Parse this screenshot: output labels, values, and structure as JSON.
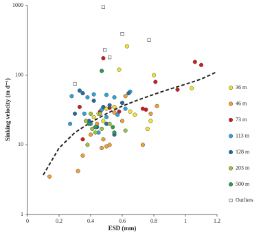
{
  "chart_data": {
    "type": "scatter",
    "x_label": "ESD (mm)",
    "y_label": "Sinking velocity (m d⁻¹)",
    "xlim": [
      0,
      1.2
    ],
    "xticks": [
      0,
      0.2,
      0.4,
      0.6,
      0.8,
      1,
      1.2
    ],
    "ylim": [
      1,
      1000
    ],
    "yticks": [
      1,
      10,
      100,
      1000
    ],
    "yscale": "log",
    "legend": "right",
    "series": [
      {
        "name": "36 m",
        "color": "#f1e62a",
        "marker": "circle",
        "x": [
          0.63,
          0.58,
          0.8,
          1.04,
          0.78,
          0.76,
          0.65,
          0.5,
          0.45,
          0.42,
          0.55,
          0.6,
          0.48,
          0.68
        ],
        "values": [
          260,
          120,
          100,
          65,
          22,
          17,
          30,
          33,
          28,
          25,
          35,
          40,
          22,
          27
        ]
      },
      {
        "name": "46 m",
        "color": "#f0a132",
        "marker": "circle",
        "x": [
          0.14,
          0.32,
          0.35,
          0.47,
          0.5,
          0.52,
          0.73,
          0.78,
          0.82,
          0.62,
          0.55,
          0.44,
          0.6,
          0.4,
          0.48
        ],
        "values": [
          3.5,
          4.2,
          7,
          9,
          9.5,
          10,
          10,
          28,
          36,
          50,
          29,
          20,
          22,
          14,
          12
        ]
      },
      {
        "name": "73 m",
        "color": "#d01c1c",
        "marker": "circle",
        "x": [
          0.48,
          1.06,
          1.1,
          0.95,
          0.81,
          0.73,
          0.75,
          0.33,
          0.35,
          0.52,
          0.58,
          0.46
        ],
        "values": [
          175,
          155,
          140,
          62,
          80,
          33,
          32,
          35,
          12,
          34,
          30,
          30
        ]
      },
      {
        "name": "113 m",
        "color": "#2ba3dc",
        "marker": "circle",
        "x": [
          0.27,
          0.28,
          0.38,
          0.42,
          0.47,
          0.5,
          0.55,
          0.62,
          0.65,
          0.5,
          0.45,
          0.4,
          0.36,
          0.57
        ],
        "values": [
          20,
          50,
          48,
          53,
          32,
          52,
          48,
          33,
          58,
          25,
          15,
          20,
          28,
          27
        ]
      },
      {
        "name": "128 m",
        "color": "#1f6ea6",
        "marker": "circle",
        "x": [
          0.33,
          0.35,
          0.3,
          0.42,
          0.52,
          0.6,
          0.64,
          0.48,
          0.39,
          0.44,
          0.55,
          0.5
        ],
        "values": [
          60,
          55,
          28,
          43,
          37,
          40,
          55,
          35,
          22,
          18,
          14,
          20
        ]
      },
      {
        "name": "203 m",
        "color": "#9bc53d",
        "marker": "circle",
        "x": [
          0.37,
          0.38,
          0.41,
          0.43,
          0.46,
          0.4,
          0.52,
          0.62,
          0.47
        ],
        "values": [
          22,
          10,
          17,
          15,
          28,
          28,
          20,
          16,
          17
        ]
      },
      {
        "name": "500 m",
        "color": "#2e9a55",
        "marker": "circle",
        "x": [
          0.47,
          0.43,
          0.54,
          0.55,
          0.39
        ],
        "values": [
          115,
          18,
          18,
          15,
          20
        ]
      },
      {
        "name": "Outliers",
        "color": "#ffffff",
        "marker": "square",
        "x": [
          0.48,
          0.6,
          0.52,
          0.49,
          0.77,
          0.3
        ],
        "values": [
          950,
          390,
          180,
          230,
          320,
          75
        ]
      }
    ],
    "trend": {
      "x": [
        0.1,
        0.2,
        0.3,
        0.4,
        0.5,
        0.6,
        0.7,
        0.8,
        0.9,
        1.0,
        1.1,
        1.2
      ],
      "values": [
        3.7,
        9,
        15,
        21,
        28,
        36,
        44,
        53,
        63,
        74,
        88,
        112
      ],
      "color": "#222222",
      "dashed": true
    }
  }
}
